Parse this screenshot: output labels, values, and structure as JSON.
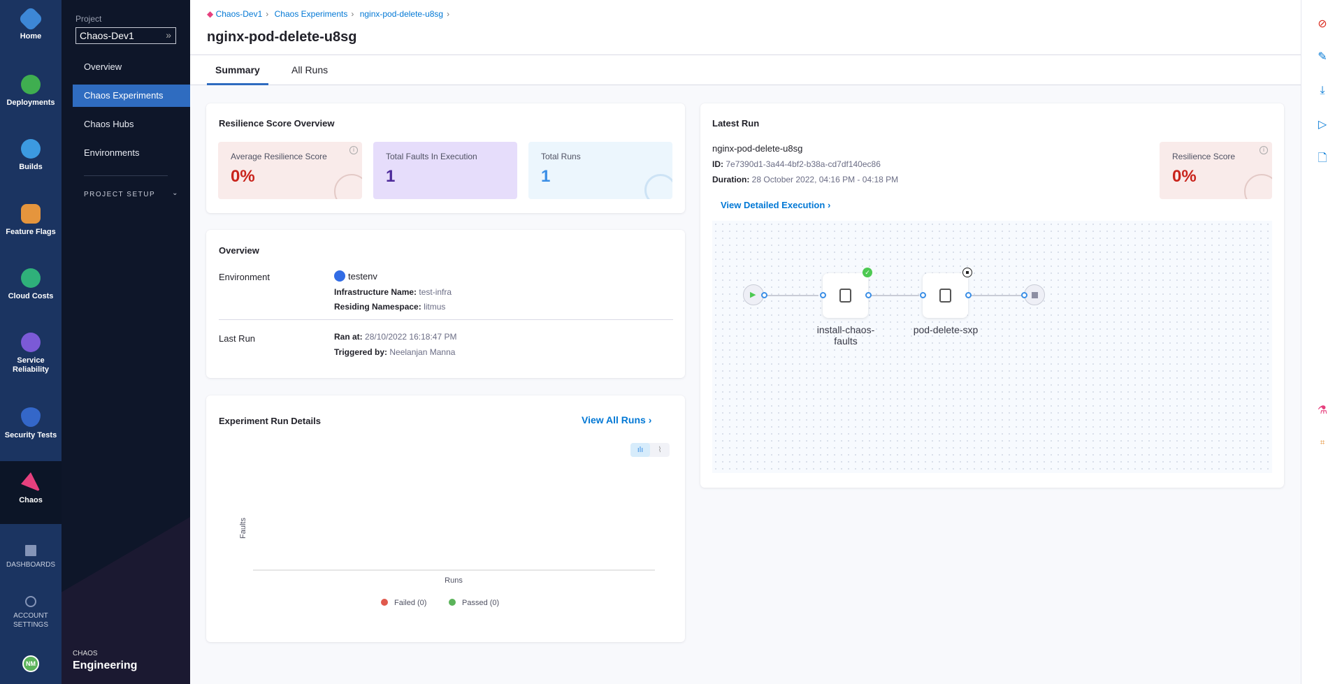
{
  "nav_rail": {
    "items": [
      {
        "label": "Home",
        "icon": "harness-home-icon",
        "color": "#3d87d6"
      },
      {
        "label": "Deployments",
        "icon": "deployments-icon",
        "color": "#3fae50"
      },
      {
        "label": "Builds",
        "icon": "builds-icon",
        "color": "#3c9ae0"
      },
      {
        "label": "Feature Flags",
        "icon": "feature-flags-icon",
        "color": "#e5953d"
      },
      {
        "label": "Cloud Costs",
        "icon": "cloud-costs-icon",
        "color": "#2fb07a"
      },
      {
        "label": "Service Reliability",
        "icon": "service-reliability-icon",
        "color": "#7b5ad6"
      },
      {
        "label": "Security Tests",
        "icon": "security-tests-icon",
        "color": "#3467c9"
      },
      {
        "label": "Chaos",
        "icon": "chaos-icon",
        "color": "#e6407e"
      }
    ],
    "dashboards": "DASHBOARDS",
    "account_settings": "ACCOUNT SETTINGS",
    "avatar": "NM"
  },
  "sidebar": {
    "project_label": "Project",
    "project": "Chaos-Dev1",
    "items": [
      "Overview",
      "Chaos Experiments",
      "Chaos Hubs",
      "Environments"
    ],
    "selected": "Chaos Experiments",
    "project_setup": "PROJECT SETUP",
    "brand_small": "CHAOS",
    "brand_large": "Engineering"
  },
  "header": {
    "breadcrumbs": [
      "Chaos-Dev1",
      "Chaos Experiments",
      "nginx-pod-delete-u8sg"
    ],
    "title": "nginx-pod-delete-u8sg",
    "tabs": [
      "Summary",
      "All Runs"
    ],
    "active_tab": "Summary"
  },
  "resilience": {
    "title": "Resilience Score Overview",
    "tiles": [
      {
        "label": "Average Resilience Score",
        "value": "0%",
        "color": "#c9231b"
      },
      {
        "label": "Total Faults In Execution",
        "value": "1",
        "color": "#4d2a9a"
      },
      {
        "label": "Total Runs",
        "value": "1",
        "color": "#3a8ee6"
      }
    ]
  },
  "overview": {
    "title": "Overview",
    "environment_label": "Environment",
    "environment": "testenv",
    "infra_label": "Infrastructure Name:",
    "infra": "test-infra",
    "ns_label": "Residing Namespace:",
    "ns": "litmus",
    "last_run_label": "Last Run",
    "ran_at_label": "Ran at:",
    "ran_at": "28/10/2022 16:18:47 PM",
    "triggered_label": "Triggered by:",
    "triggered": "Neelanjan Manna"
  },
  "run_details": {
    "title": "Experiment Run Details",
    "view_all": "View All Runs",
    "chart_toggle": [
      "bar-chart-icon",
      "line-chart-icon"
    ]
  },
  "chart_data": {
    "type": "bar",
    "categories": [],
    "series": [
      {
        "name": "Failed (0)",
        "values": [],
        "color": "#e0594d"
      },
      {
        "name": "Passed (0)",
        "values": [],
        "color": "#5bb35a"
      }
    ],
    "xlabel": "Runs",
    "ylabel": "Faults",
    "legend": "bottom"
  },
  "latest_run": {
    "title": "Latest Run",
    "name": "nginx-pod-delete-u8sg",
    "id_label": "ID:",
    "id": "7e7390d1-3a44-4bf2-b38a-cd7df140ec86",
    "duration_label": "Duration:",
    "duration": "28 October 2022, 04:16 PM - 04:18 PM",
    "score_label": "Resilience Score",
    "score": "0%",
    "view_detail": "View Detailed Execution",
    "nodes": [
      {
        "label": "install-chaos-faults",
        "status": "success"
      },
      {
        "label": "pod-delete-sxp",
        "status": "pending"
      }
    ]
  },
  "right_rail": [
    "ban-icon",
    "edit-icon",
    "download-icon",
    "run-icon",
    "file-icon",
    "flask-icon",
    "chaos-hub-icon"
  ]
}
